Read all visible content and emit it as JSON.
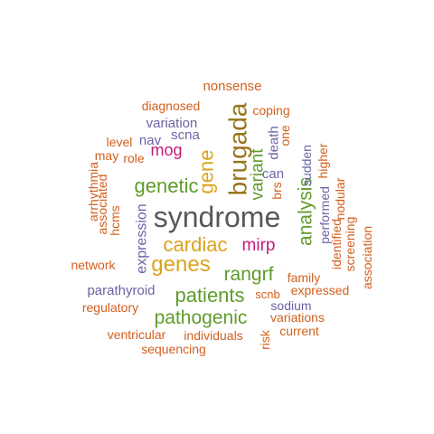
{
  "palette": {
    "orange": "#d35f1e",
    "green": "#5e9c2a",
    "purple": "#6a64a6",
    "magenta": "#c8197a",
    "gold": "#dca21c",
    "brown": "#98741c",
    "gray": "#585858"
  },
  "words": [
    {
      "text": "syndrome",
      "color": "gray"
    },
    {
      "text": "brugada",
      "color": "brown"
    },
    {
      "text": "genes",
      "color": "gold"
    },
    {
      "text": "cardiac",
      "color": "gold"
    },
    {
      "text": "gene",
      "color": "gold"
    },
    {
      "text": "genetic",
      "color": "green"
    },
    {
      "text": "patients",
      "color": "green"
    },
    {
      "text": "pathogenic",
      "color": "green"
    },
    {
      "text": "analysis",
      "color": "green"
    },
    {
      "text": "rangrf",
      "color": "green"
    },
    {
      "text": "variant",
      "color": "green"
    },
    {
      "text": "mirp",
      "color": "magenta"
    },
    {
      "text": "mog",
      "color": "magenta"
    },
    {
      "text": "expression",
      "color": "purple"
    },
    {
      "text": "parathyroid",
      "color": "purple"
    },
    {
      "text": "variation",
      "color": "purple"
    },
    {
      "text": "sodium",
      "color": "purple"
    },
    {
      "text": "can",
      "color": "purple"
    },
    {
      "text": "nav",
      "color": "purple"
    },
    {
      "text": "scna",
      "color": "purple"
    },
    {
      "text": "death",
      "color": "purple"
    },
    {
      "text": "sudden",
      "color": "purple"
    },
    {
      "text": "performed",
      "color": "purple"
    },
    {
      "text": "nonsense",
      "color": "orange"
    },
    {
      "text": "diagnosed",
      "color": "orange"
    },
    {
      "text": "coping",
      "color": "orange"
    },
    {
      "text": "level",
      "color": "orange"
    },
    {
      "text": "may",
      "color": "orange"
    },
    {
      "text": "role",
      "color": "orange"
    },
    {
      "text": "arrhythmia",
      "color": "orange"
    },
    {
      "text": "associated",
      "color": "orange"
    },
    {
      "text": "hcms",
      "color": "orange"
    },
    {
      "text": "network",
      "color": "orange"
    },
    {
      "text": "regulatory",
      "color": "orange"
    },
    {
      "text": "ventricular",
      "color": "orange"
    },
    {
      "text": "sequencing",
      "color": "orange"
    },
    {
      "text": "individuals",
      "color": "orange"
    },
    {
      "text": "risk",
      "color": "orange"
    },
    {
      "text": "current",
      "color": "orange"
    },
    {
      "text": "variations",
      "color": "orange"
    },
    {
      "text": "scnb",
      "color": "orange"
    },
    {
      "text": "expressed",
      "color": "orange"
    },
    {
      "text": "family",
      "color": "orange"
    },
    {
      "text": "identified",
      "color": "orange"
    },
    {
      "text": "nodular",
      "color": "orange"
    },
    {
      "text": "screening",
      "color": "orange"
    },
    {
      "text": "association",
      "color": "orange"
    },
    {
      "text": "higher",
      "color": "orange"
    },
    {
      "text": "one",
      "color": "orange"
    },
    {
      "text": "brs",
      "color": "orange"
    }
  ]
}
